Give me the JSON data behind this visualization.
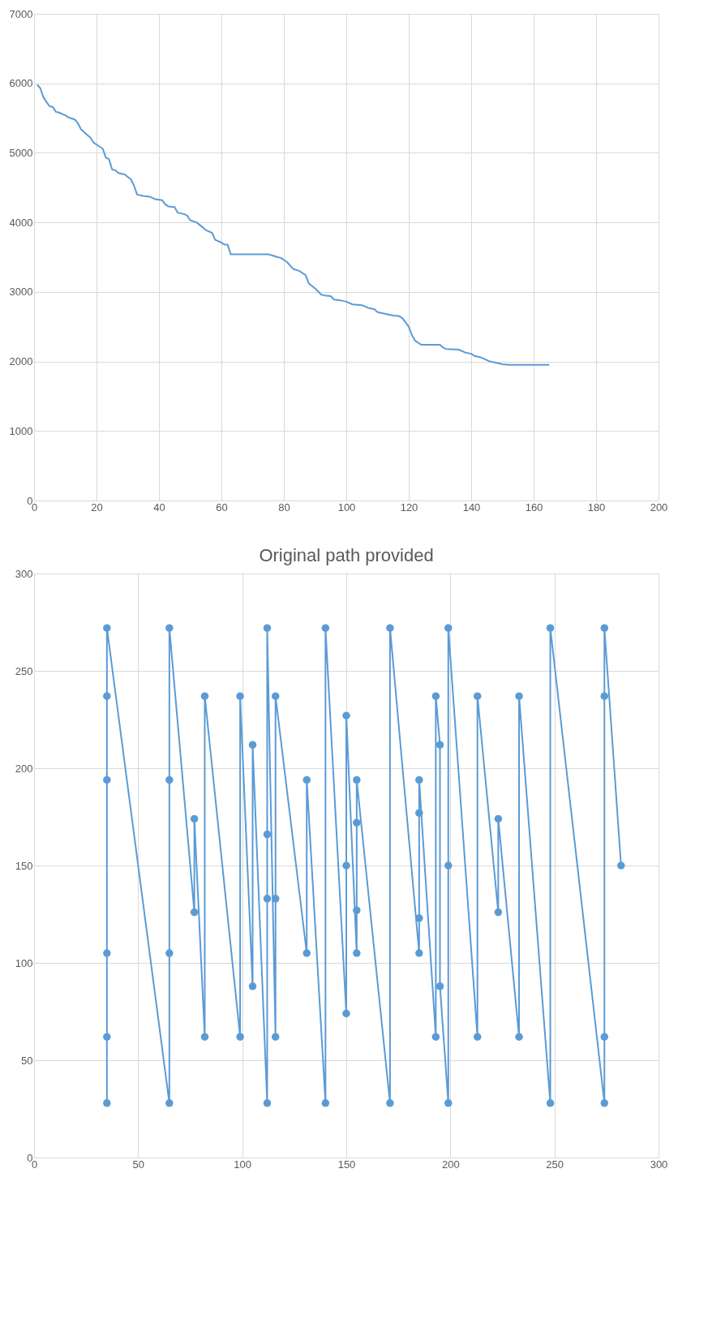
{
  "chart_data": [
    {
      "type": "line",
      "x": [
        1,
        2,
        3,
        4,
        5,
        6,
        7,
        8,
        10,
        11,
        13,
        14,
        15,
        17,
        18,
        19,
        21,
        22,
        23,
        24,
        25,
        26,
        27,
        29,
        31,
        32,
        33,
        35,
        37,
        39,
        41,
        42,
        43,
        45,
        46,
        48,
        49,
        50,
        52,
        54,
        55,
        57,
        58,
        60,
        61,
        62,
        63,
        75,
        76,
        78,
        79,
        81,
        83,
        85,
        87,
        88,
        90,
        92,
        93,
        95,
        96,
        98,
        100,
        102,
        105,
        107,
        109,
        110,
        112,
        115,
        117,
        118,
        120,
        121,
        122,
        124,
        130,
        131,
        132,
        136,
        138,
        140,
        141,
        143,
        145,
        146,
        148,
        150,
        152,
        165
      ],
      "series": [
        {
          "color": "#5b9bd5",
          "values": [
            5980,
            5930,
            5800,
            5730,
            5670,
            5660,
            5590,
            5580,
            5540,
            5510,
            5480,
            5430,
            5340,
            5260,
            5220,
            5150,
            5090,
            5060,
            4930,
            4910,
            4760,
            4750,
            4710,
            4690,
            4620,
            4530,
            4400,
            4380,
            4370,
            4330,
            4320,
            4260,
            4230,
            4220,
            4140,
            4120,
            4100,
            4030,
            4000,
            3930,
            3890,
            3850,
            3750,
            3710,
            3680,
            3680,
            3540,
            3540,
            3530,
            3500,
            3490,
            3430,
            3330,
            3300,
            3240,
            3120,
            3050,
            2960,
            2950,
            2940,
            2890,
            2880,
            2860,
            2820,
            2810,
            2770,
            2750,
            2710,
            2690,
            2660,
            2650,
            2620,
            2500,
            2380,
            2300,
            2240,
            2240,
            2200,
            2180,
            2170,
            2130,
            2110,
            2080,
            2060,
            2020,
            2000,
            1980,
            1960,
            1950,
            1950
          ]
        }
      ],
      "xlim": [
        0,
        200
      ],
      "xticks": [
        0,
        20,
        40,
        60,
        80,
        100,
        120,
        140,
        160,
        180,
        200
      ],
      "ylim": [
        0,
        7000
      ],
      "yticks": [
        0,
        1000,
        2000,
        3000,
        4000,
        5000,
        6000,
        7000
      ],
      "grid": true,
      "marker": "none",
      "line_style": "solid"
    },
    {
      "type": "line",
      "title": "Original path provided",
      "x": [
        35,
        35,
        35,
        35,
        35,
        35,
        65,
        65,
        65,
        65,
        77,
        77,
        82,
        82,
        99,
        99,
        105,
        105,
        112,
        112,
        112,
        112,
        116,
        116,
        116,
        131,
        131,
        140,
        140,
        150,
        150,
        150,
        155,
        155,
        155,
        155,
        171,
        171,
        185,
        185,
        185,
        185,
        193,
        193,
        195,
        195,
        199,
        199,
        199,
        213,
        213,
        223,
        223,
        233,
        233,
        248,
        248,
        274,
        274,
        274,
        274,
        282
      ],
      "series": [
        {
          "color": "#5b9bd5",
          "values": [
            28,
            62,
            105,
            194,
            237,
            272,
            28,
            105,
            194,
            272,
            126,
            174,
            62,
            237,
            62,
            237,
            88,
            212,
            28,
            133,
            166,
            272,
            62,
            133,
            237,
            105,
            194,
            28,
            272,
            74,
            150,
            227,
            105,
            127,
            172,
            194,
            28,
            272,
            105,
            123,
            177,
            194,
            62,
            237,
            212,
            88,
            28,
            150,
            272,
            62,
            237,
            126,
            174,
            62,
            237,
            28,
            272,
            28,
            62,
            237,
            272,
            150
          ]
        }
      ],
      "xlim": [
        0,
        300
      ],
      "xticks": [
        0,
        50,
        100,
        150,
        200,
        250,
        300
      ],
      "ylim": [
        0,
        300
      ],
      "yticks": [
        0,
        50,
        100,
        150,
        200,
        250,
        300
      ],
      "grid": true,
      "marker": "circle",
      "line_style": "solid"
    }
  ]
}
